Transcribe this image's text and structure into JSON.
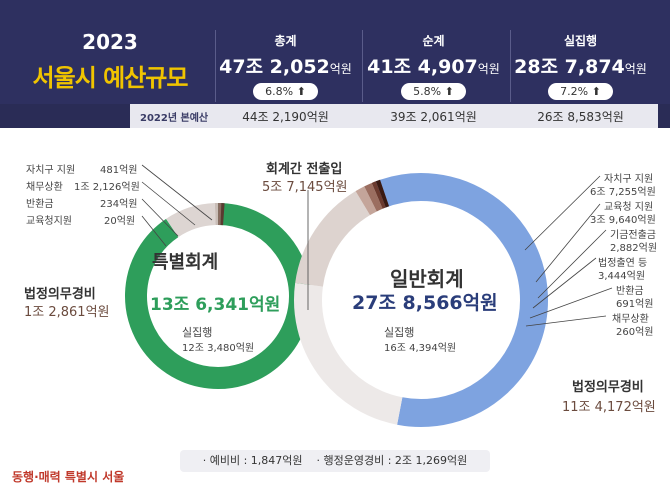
{
  "header": {
    "year": "2023",
    "title": "서울시 예산규모",
    "columns": [
      {
        "label": "총계",
        "amount": "47조 2,052",
        "unit": "억원",
        "growth": "6.8% ⬆"
      },
      {
        "label": "순계",
        "amount": "41조 4,907",
        "unit": "억원",
        "growth": "5.8% ⬆"
      },
      {
        "label": "실집행",
        "amount": "28조 7,874",
        "unit": "억원",
        "growth": "7.2% ⬆"
      }
    ],
    "prev_label": "2022년 본예산",
    "prev_values": [
      "44조 2,190억원",
      "39조 2,061억원",
      "26조 8,583억원"
    ]
  },
  "special": {
    "title": "특별회계",
    "amount": "13조 6,341억원",
    "exec_label": "실집행",
    "exec_value": "12조 3,480억원",
    "mandatory_label": "법정의무경비",
    "mandatory_value": "1조 2,861억원",
    "items": [
      {
        "label": "자치구 지원",
        "value": "481억원"
      },
      {
        "label": "채무상환",
        "value": "1조 2,126억원"
      },
      {
        "label": "반환금",
        "value": "234억원"
      },
      {
        "label": "교육청지원",
        "value": "20억원"
      }
    ]
  },
  "transfer": {
    "label": "회계간 전출입",
    "value": "5조 7,145억원"
  },
  "general": {
    "title": "일반회계",
    "amount": "27조 8,566억원",
    "exec_label": "실집행",
    "exec_value": "16조 4,394억원",
    "mandatory_label": "법정의무경비",
    "mandatory_value": "11조 4,172억원",
    "items": [
      {
        "label": "자치구 지원",
        "value": "6조 7,255억원"
      },
      {
        "label": "교육청 지원",
        "value": "3조 9,640억원"
      },
      {
        "label": "기금전출금",
        "value": "2,882억원"
      },
      {
        "label": "법정출연 등",
        "value": "3,444억원"
      },
      {
        "label": "반환금",
        "value": "691억원"
      },
      {
        "label": "채무상환",
        "value": "260억원"
      }
    ]
  },
  "footer": {
    "reserve": "· 예비비 : 1,847억원",
    "admin": "· 행정운영경비 : 2조 1,269억원",
    "slogan": "동행·매력 특별시 서울"
  },
  "colors": {
    "special_ring": "#2e9e5b",
    "general_ring": "#7ea3e0",
    "header_bg": "#2e3060",
    "title_yellow": "#f0c400"
  },
  "chart_data": [
    {
      "type": "pie",
      "title": "특별회계",
      "total": 136341,
      "categories": [
        "실집행",
        "채무상환",
        "자치구 지원",
        "반환금",
        "교육청지원"
      ],
      "values": [
        123480,
        12126,
        481,
        234,
        20
      ]
    },
    {
      "type": "pie",
      "title": "일반회계",
      "total": 278566,
      "categories": [
        "실집행",
        "자치구 지원",
        "교육청 지원",
        "법정출연 등",
        "기금전출금",
        "반환금",
        "채무상환"
      ],
      "values": [
        164394,
        67255,
        39640,
        3444,
        2882,
        691,
        260
      ]
    }
  ]
}
